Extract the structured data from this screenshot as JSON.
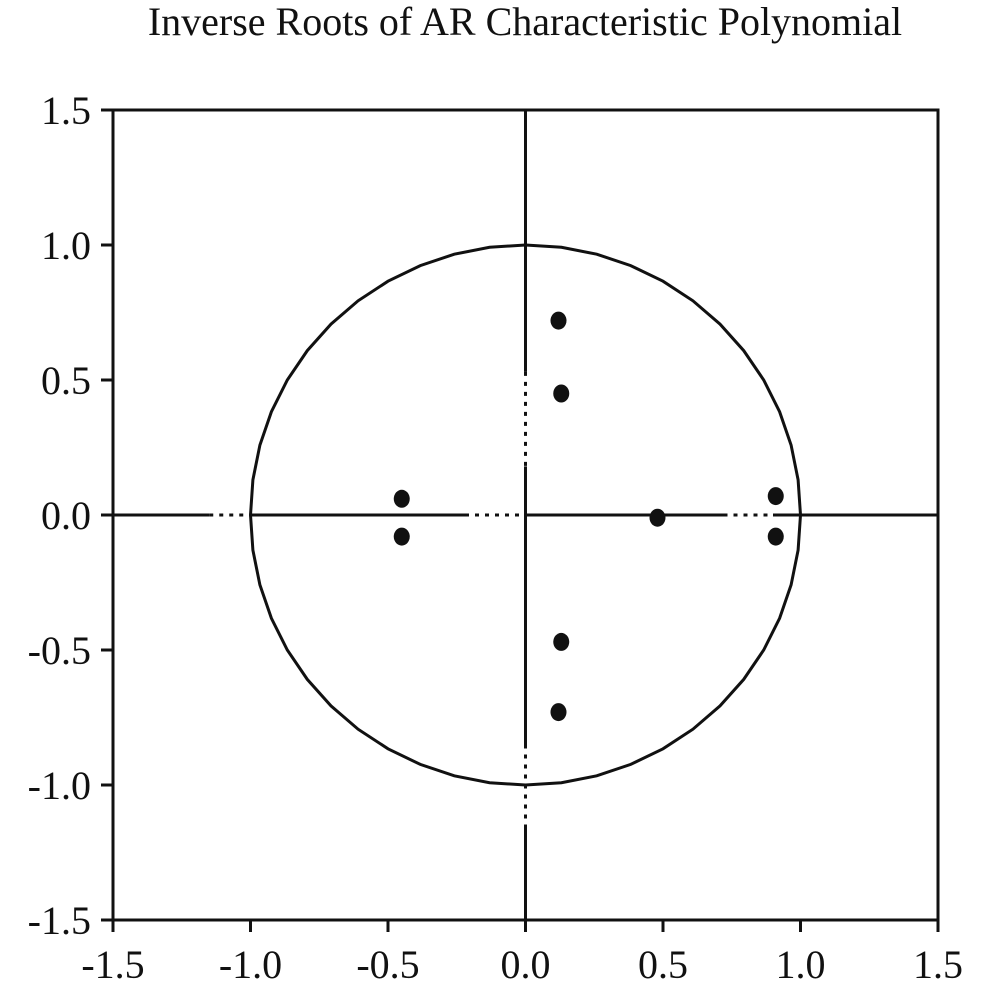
{
  "chart_data": {
    "type": "scatter",
    "title": "Inverse Roots of AR Characteristic Polynomial",
    "xlabel": "",
    "ylabel": "",
    "xlim": [
      -1.5,
      1.5
    ],
    "ylim": [
      -1.5,
      1.5
    ],
    "x_ticks": [
      "-1.5",
      "-1.0",
      "-0.5",
      "0.0",
      "0.5",
      "1.0",
      "1.5"
    ],
    "y_ticks": [
      "1.5",
      "1.0",
      "0.5",
      "0.0",
      "-0.5",
      "-1.0",
      "-1.5"
    ],
    "grid": false,
    "unit_circle": true,
    "points": [
      {
        "x": 0.12,
        "y": 0.72
      },
      {
        "x": 0.13,
        "y": 0.45
      },
      {
        "x": -0.45,
        "y": 0.06
      },
      {
        "x": -0.45,
        "y": -0.08
      },
      {
        "x": 0.48,
        "y": -0.01
      },
      {
        "x": 0.91,
        "y": 0.07
      },
      {
        "x": 0.91,
        "y": -0.08
      },
      {
        "x": 0.13,
        "y": -0.47
      },
      {
        "x": 0.12,
        "y": -0.73
      }
    ],
    "colors": {
      "axis": "#111111",
      "marker": "#111111",
      "background": "#ffffff"
    }
  }
}
